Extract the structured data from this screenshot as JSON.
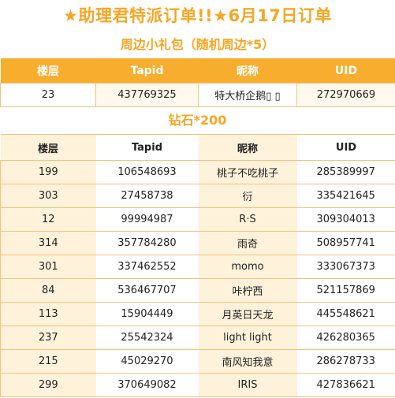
{
  "title": "★助理君特派订单!!★6月17日订单",
  "gift": {
    "title": "周边小礼包（随机周边*5）",
    "headers": [
      "楼层",
      "Tapid",
      "昵称",
      "UID"
    ],
    "rows": [
      [
        "23",
        "437769325",
        "特大桥企鹅▯ ▯",
        "272970669"
      ]
    ]
  },
  "diamond": {
    "title": "钻石*200",
    "headers": [
      "楼层",
      "Tapid",
      "昵称",
      "UID"
    ],
    "rows": [
      [
        "199",
        "106548693",
        "桃子不吃桃子",
        "285389997"
      ],
      [
        "303",
        "27458738",
        "衍",
        "335421645"
      ],
      [
        "12",
        "99994987",
        "R·S",
        "309304013"
      ],
      [
        "314",
        "357784280",
        "雨奇",
        "508957741"
      ],
      [
        "301",
        "337462552",
        "momo",
        "333067373"
      ],
      [
        "84",
        "536467707",
        "咔柠西",
        "521157869"
      ],
      [
        "113",
        "15904449",
        "月英日天龙",
        "445548621"
      ],
      [
        "237",
        "25542324",
        "light light",
        "426280365"
      ],
      [
        "215",
        "45029270",
        "南风知我意",
        "286278733"
      ],
      [
        "299",
        "370649082",
        "IRIS",
        "427836621"
      ]
    ]
  }
}
